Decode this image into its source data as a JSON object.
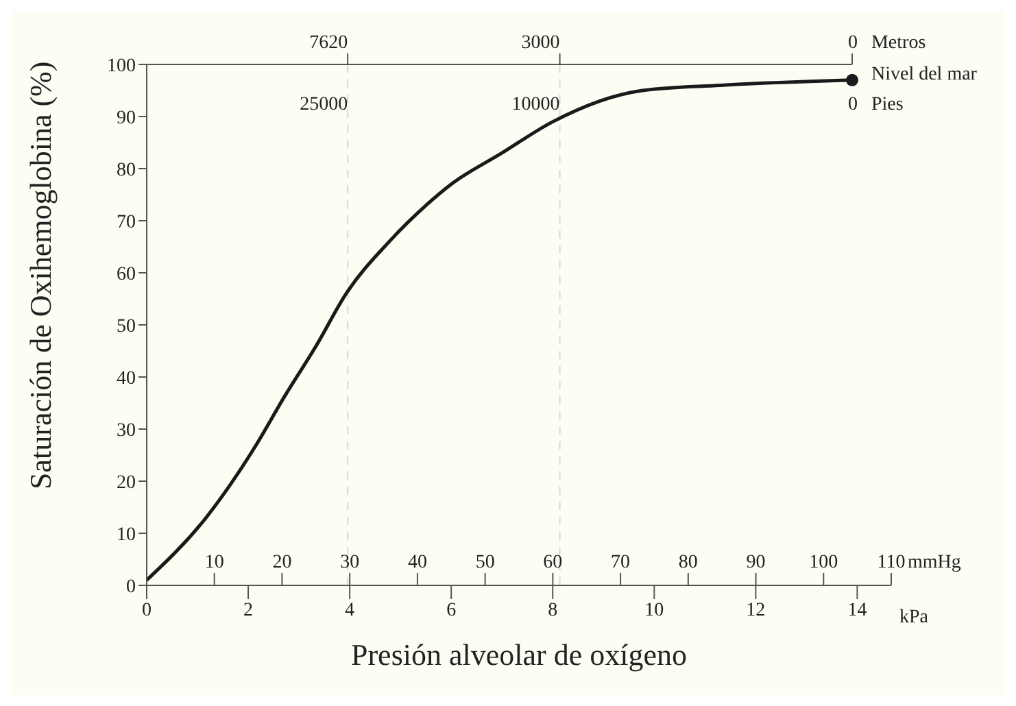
{
  "chart_data": {
    "type": "line",
    "xlabel": "Presión alveolar de oxígeno",
    "ylabel": "Saturación de Oxihemoglobina (%)",
    "x": [
      0,
      1.17,
      2.16,
      2.7,
      3.34,
      3.93,
      4.78,
      5.51,
      6,
      7,
      8,
      9.77,
      11.3,
      13.9
    ],
    "series": [
      {
        "color": "#1a1a1a",
        "values": [
          1,
          13,
          27,
          36,
          46,
          56,
          66,
          73,
          77,
          83,
          89,
          95,
          96,
          97
        ],
        "marker": "none",
        "line_style": "solid"
      },
      {
        "type": "scatter",
        "x": [
          13.9
        ],
        "values": [
          97
        ],
        "color": "#1a1a1a",
        "marker": "circle"
      }
    ],
    "xlim": [
      0,
      14.67
    ],
    "xticks": [
      0,
      2,
      4,
      6,
      8,
      10,
      12,
      14
    ],
    "ylim": [
      0,
      100
    ],
    "yticks": [
      0,
      10,
      20,
      30,
      40,
      50,
      60,
      70,
      80,
      90,
      100
    ],
    "x2label": "mmHg",
    "x2lim": [
      0,
      110
    ],
    "x2ticks": [
      10,
      20,
      30,
      40,
      50,
      60,
      70,
      80,
      90,
      100,
      110
    ],
    "ref_lines": [
      {
        "axis": "x",
        "value": 3.96,
        "color": "#d8d8d8",
        "line_style": "dashed"
      },
      {
        "axis": "x",
        "value": 8.14,
        "color": "#d8d8d8",
        "line_style": "dashed"
      }
    ],
    "annotations": [
      "kPa",
      "Nivel del mar",
      "Metros",
      "Pies",
      "7620",
      "3000",
      "0",
      "25000",
      "10000",
      "0"
    ],
    "grid": false,
    "legend": false
  }
}
